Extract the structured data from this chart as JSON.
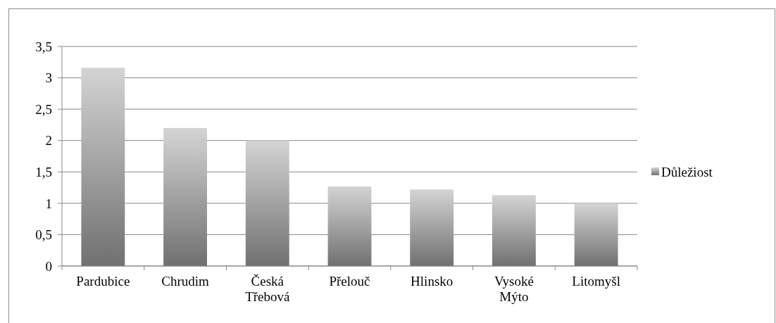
{
  "chart_data": {
    "type": "bar",
    "categories": [
      "Pardubice",
      "Chrudim",
      "Česká Třebová",
      "Přelouč",
      "Hlinsko",
      "Vysoké Mýto",
      "Litomyšl"
    ],
    "series": [
      {
        "name": "Důležiost",
        "color": "#9a9a9a",
        "values": [
          3.16,
          2.2,
          2.0,
          1.27,
          1.22,
          1.13,
          1.0
        ]
      }
    ],
    "ylim": [
      0,
      3.5
    ],
    "yticks": [
      0,
      {
        "value": 0.5,
        "label": "0,5"
      },
      1,
      {
        "value": 1.5,
        "label": "1,5"
      },
      2,
      {
        "value": 2.5,
        "label": "2,5"
      },
      3,
      {
        "value": 3.5,
        "label": "3,5"
      }
    ],
    "grid": "y",
    "legend": "right"
  }
}
